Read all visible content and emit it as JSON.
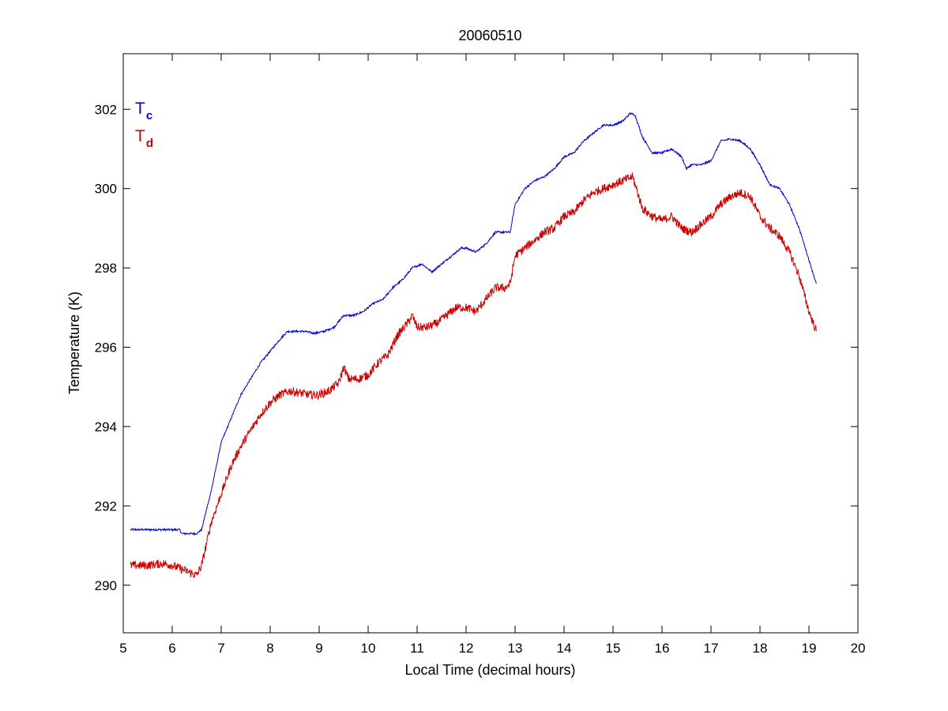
{
  "chart_data": {
    "type": "line",
    "title": "20060510",
    "xlabel": "Local Time (decimal hours)",
    "ylabel": "Temperature (K)",
    "xlim": [
      5,
      20
    ],
    "ylim": [
      288.8,
      303.4
    ],
    "xticks": [
      5,
      6,
      7,
      8,
      9,
      10,
      11,
      12,
      13,
      14,
      15,
      16,
      17,
      18,
      19,
      20
    ],
    "yticks": [
      290,
      292,
      294,
      296,
      298,
      300,
      302
    ],
    "grid": false,
    "legend_position": "top-left",
    "series": [
      {
        "name": "T",
        "subscript": "c",
        "color": "#0000cc",
        "x": [
          5.15,
          5.5,
          6.0,
          6.15,
          6.2,
          6.5,
          6.6,
          6.8,
          7.0,
          7.2,
          7.4,
          7.6,
          7.8,
          8.0,
          8.2,
          8.35,
          8.5,
          8.7,
          8.9,
          9.1,
          9.3,
          9.5,
          9.7,
          9.9,
          10.1,
          10.3,
          10.5,
          10.7,
          10.9,
          11.1,
          11.2,
          11.3,
          11.4,
          11.5,
          11.7,
          11.9,
          12.0,
          12.2,
          12.4,
          12.6,
          12.8,
          12.9,
          13.0,
          13.2,
          13.4,
          13.6,
          13.8,
          14.0,
          14.2,
          14.4,
          14.6,
          14.8,
          15.0,
          15.2,
          15.35,
          15.45,
          15.6,
          15.8,
          16.0,
          16.2,
          16.4,
          16.5,
          16.6,
          16.8,
          17.0,
          17.2,
          17.4,
          17.6,
          17.8,
          18.0,
          18.2,
          18.4,
          18.6,
          18.8,
          19.0,
          19.15
        ],
        "y": [
          291.4,
          291.4,
          291.4,
          291.4,
          291.3,
          291.3,
          291.4,
          292.4,
          293.6,
          294.2,
          294.8,
          295.2,
          295.6,
          295.9,
          296.2,
          296.4,
          296.4,
          296.4,
          296.35,
          296.4,
          296.5,
          296.8,
          296.8,
          296.9,
          297.1,
          297.2,
          297.5,
          297.7,
          298.0,
          298.1,
          298.0,
          297.9,
          298.0,
          298.1,
          298.3,
          298.5,
          298.5,
          298.4,
          298.6,
          298.9,
          298.9,
          298.9,
          299.6,
          300.0,
          300.2,
          300.3,
          300.5,
          300.8,
          300.9,
          301.2,
          301.4,
          301.6,
          301.6,
          301.7,
          301.9,
          301.85,
          301.3,
          300.9,
          300.9,
          301.0,
          300.8,
          300.5,
          300.6,
          300.6,
          300.7,
          301.2,
          301.25,
          301.2,
          301.0,
          300.6,
          300.1,
          300.0,
          299.6,
          299.0,
          298.2,
          297.6
        ]
      },
      {
        "name": "T",
        "subscript": "d",
        "color": "#cc0000",
        "x": [
          5.15,
          5.5,
          5.8,
          6.0,
          6.2,
          6.4,
          6.5,
          6.6,
          6.8,
          7.0,
          7.2,
          7.4,
          7.6,
          7.8,
          8.0,
          8.2,
          8.4,
          8.6,
          8.8,
          9.0,
          9.2,
          9.4,
          9.5,
          9.6,
          9.8,
          10.0,
          10.2,
          10.4,
          10.6,
          10.8,
          10.9,
          11.0,
          11.2,
          11.4,
          11.6,
          11.8,
          12.0,
          12.2,
          12.4,
          12.6,
          12.8,
          12.9,
          13.0,
          13.2,
          13.4,
          13.6,
          13.8,
          14.0,
          14.2,
          14.4,
          14.6,
          14.8,
          15.0,
          15.2,
          15.4,
          15.45,
          15.6,
          15.8,
          16.0,
          16.2,
          16.4,
          16.6,
          16.8,
          17.0,
          17.2,
          17.4,
          17.6,
          17.8,
          18.0,
          18.2,
          18.4,
          18.6,
          18.8,
          19.0,
          19.15
        ],
        "y": [
          290.5,
          290.5,
          290.55,
          290.5,
          290.4,
          290.3,
          290.25,
          290.5,
          291.6,
          292.3,
          293.0,
          293.5,
          293.9,
          294.3,
          294.6,
          294.8,
          294.9,
          294.85,
          294.8,
          294.8,
          294.9,
          295.1,
          295.5,
          295.2,
          295.2,
          295.3,
          295.6,
          295.8,
          296.3,
          296.6,
          296.8,
          296.5,
          296.5,
          296.6,
          296.8,
          297.0,
          297.0,
          296.9,
          297.2,
          297.5,
          297.5,
          297.6,
          298.3,
          298.5,
          298.7,
          298.9,
          299.0,
          299.3,
          299.4,
          299.7,
          299.9,
          300.0,
          300.1,
          300.2,
          300.3,
          300.1,
          299.5,
          299.3,
          299.2,
          299.3,
          299.0,
          298.9,
          299.1,
          299.3,
          299.6,
          299.8,
          299.9,
          299.8,
          299.3,
          299.0,
          298.8,
          298.4,
          297.8,
          296.9,
          296.4
        ]
      }
    ]
  }
}
